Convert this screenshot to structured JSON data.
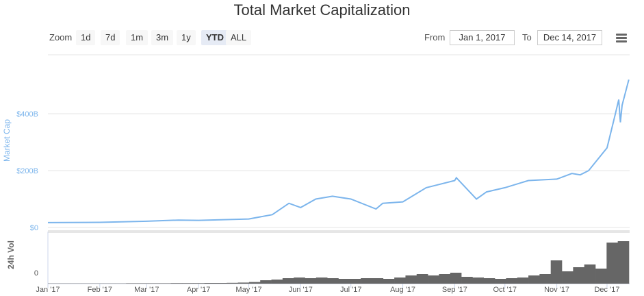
{
  "title": "Total Market Capitalization",
  "toolbar": {
    "zoom_label": "Zoom",
    "buttons": [
      "1d",
      "7d",
      "1m",
      "3m",
      "1y",
      "YTD",
      "ALL"
    ],
    "selected": "YTD",
    "from_label": "From",
    "from_value": "Jan 1, 2017",
    "to_label": "To",
    "to_value": "Dec 14, 2017",
    "menu_icon": "hamburger-icon"
  },
  "chart_data": [
    {
      "type": "line",
      "ylabel": "Market Cap",
      "y_ticks": [
        "$0",
        "$200B",
        "$400B"
      ],
      "ylim": [
        0,
        500
      ],
      "color": "#7cb5ec",
      "grid": true,
      "x": [
        "2017-01-01",
        "2017-02-01",
        "2017-03-01",
        "2017-03-20",
        "2017-04-01",
        "2017-05-01",
        "2017-05-15",
        "2017-05-25",
        "2017-06-01",
        "2017-06-10",
        "2017-06-20",
        "2017-07-01",
        "2017-07-16",
        "2017-07-20",
        "2017-08-01",
        "2017-08-15",
        "2017-09-01",
        "2017-09-02",
        "2017-09-14",
        "2017-09-20",
        "2017-10-01",
        "2017-10-15",
        "2017-11-01",
        "2017-11-10",
        "2017-11-15",
        "2017-11-20",
        "2017-12-01",
        "2017-12-06",
        "2017-12-08",
        "2017-12-09",
        "2017-12-10",
        "2017-12-14"
      ],
      "values": [
        17,
        18,
        22,
        26,
        25,
        30,
        45,
        85,
        70,
        100,
        110,
        100,
        65,
        85,
        90,
        140,
        165,
        175,
        100,
        125,
        140,
        165,
        170,
        190,
        185,
        200,
        280,
        400,
        450,
        370,
        430,
        520
      ]
    },
    {
      "type": "area",
      "ylabel": "24h Vol",
      "y_ticks": [
        "0"
      ],
      "color": "#666666",
      "x_ticks": [
        "Jan '17",
        "Feb '17",
        "Mar '17",
        "Apr '17",
        "May '17",
        "Jun '17",
        "Jul '17",
        "Aug '17",
        "Sep '17",
        "Oct '17",
        "Nov '17",
        "Dec '17"
      ],
      "values": [
        0.2,
        0.2,
        0.2,
        0.2,
        0.2,
        0.2,
        0.2,
        0.3,
        0.3,
        0.3,
        0.3,
        0.4,
        0.4,
        0.4,
        0.5,
        0.5,
        0.6,
        0.8,
        1.2,
        2.5,
        3,
        4,
        4.5,
        4,
        4.5,
        4,
        3.5,
        3.5,
        4,
        4,
        3.5,
        4.5,
        6,
        7,
        6,
        7,
        8,
        5,
        4.5,
        4,
        3.5,
        4,
        4.5,
        6,
        7,
        17,
        9,
        12,
        14,
        11,
        30,
        31
      ]
    }
  ]
}
